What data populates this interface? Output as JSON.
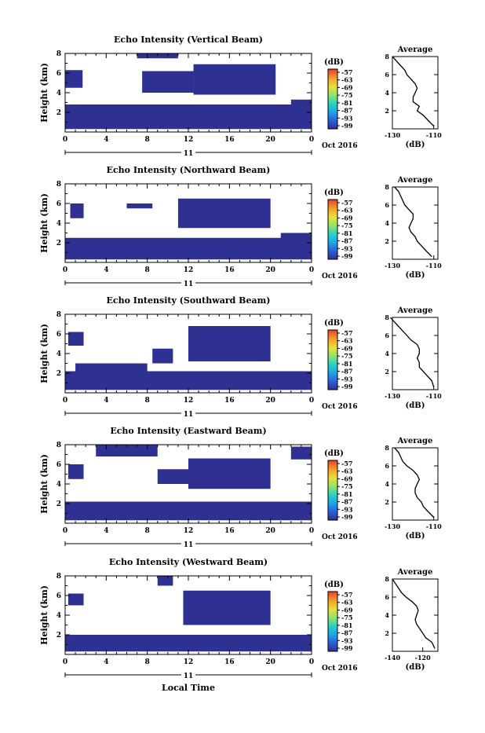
{
  "figure": {
    "xlabel_bottom": "Local Time"
  },
  "colorbar": {
    "unit_label": "(dB)",
    "ticks": [
      "-57",
      "-63",
      "-69",
      "-75",
      "-81",
      "-87",
      "-93",
      "-99"
    ]
  },
  "chart_data": [
    {
      "type": "heatmap",
      "title": "Echo Intensity (Vertical Beam)",
      "ylabel": "Height (km)",
      "ylim": [
        0,
        8
      ],
      "yticks": [
        "2",
        "4",
        "6",
        "8"
      ],
      "xlim": [
        0,
        24
      ],
      "xticks": [
        "0",
        "4",
        "8",
        "12",
        "16",
        "20",
        "0"
      ],
      "date_marker": "11",
      "date_label": "Oct 2016",
      "color_range": [
        -99,
        -57
      ],
      "blocks": [
        {
          "t0": 0,
          "t1": 24,
          "h0": 0.3,
          "h1": 2.8,
          "value": -99
        },
        {
          "t0": 0,
          "t1": 1.7,
          "h0": 4.5,
          "h1": 6.3,
          "value": -99
        },
        {
          "t0": 12.5,
          "t1": 20.5,
          "h0": 3.8,
          "h1": 6.9,
          "value": -99
        },
        {
          "t0": 7.5,
          "t1": 12.5,
          "h0": 4.0,
          "h1": 6.2,
          "value": -99
        },
        {
          "t0": 7.0,
          "t1": 11.0,
          "h0": 7.5,
          "h1": 8.0,
          "value": -99
        },
        {
          "t0": 22.0,
          "t1": 24,
          "h0": 1.5,
          "h1": 3.3,
          "value": -99
        }
      ],
      "avg_profile": {
        "xlabel": "(dB)",
        "title": "Average",
        "xlim": [
          -130,
          -108
        ],
        "xticks": [
          "-130",
          "-110"
        ],
        "ylim": [
          0,
          8
        ],
        "yticks": [
          "2",
          "4",
          "6",
          "8"
        ],
        "height": [
          0.3,
          1.0,
          1.5,
          2.0,
          2.5,
          3.0,
          3.5,
          4.0,
          4.5,
          5.0,
          5.5,
          6.0,
          6.5,
          7.0,
          7.5,
          8.0
        ],
        "value": [
          -110,
          -113,
          -115,
          -118,
          -117,
          -120,
          -120,
          -119,
          -118,
          -119,
          -121,
          -123,
          -124,
          -126,
          -128,
          -130
        ]
      }
    },
    {
      "type": "heatmap",
      "title": "Echo Intensity (Northward Beam)",
      "ylabel": "Height (km)",
      "ylim": [
        0,
        8
      ],
      "yticks": [
        "2",
        "4",
        "6",
        "8"
      ],
      "xlim": [
        0,
        24
      ],
      "xticks": [
        "0",
        "4",
        "8",
        "12",
        "16",
        "20",
        "0"
      ],
      "date_marker": "11",
      "date_label": "Oct 2016",
      "color_range": [
        -99,
        -57
      ],
      "blocks": [
        {
          "t0": 0,
          "t1": 24,
          "h0": 0.3,
          "h1": 2.5,
          "value": -99
        },
        {
          "t0": 0.5,
          "t1": 1.8,
          "h0": 4.5,
          "h1": 6.0,
          "value": -99
        },
        {
          "t0": 11.0,
          "t1": 20.0,
          "h0": 3.5,
          "h1": 6.5,
          "value": -99
        },
        {
          "t0": 6.0,
          "t1": 8.5,
          "h0": 5.5,
          "h1": 6.0,
          "value": -99
        },
        {
          "t0": 21.0,
          "t1": 24,
          "h0": 1.5,
          "h1": 3.0,
          "value": -99
        }
      ],
      "avg_profile": {
        "xlabel": "(dB)",
        "title": "Average",
        "xlim": [
          -130,
          -108
        ],
        "xticks": [
          "-130",
          "-110"
        ],
        "ylim": [
          0,
          8
        ],
        "yticks": [
          "2",
          "4",
          "6",
          "8"
        ],
        "height": [
          0.3,
          1.0,
          1.5,
          2.0,
          2.5,
          3.0,
          3.5,
          4.0,
          4.5,
          5.0,
          5.5,
          6.0,
          6.5,
          7.0,
          7.5,
          8.0
        ],
        "value": [
          -111,
          -114,
          -116,
          -118,
          -119,
          -121,
          -122,
          -121,
          -120,
          -120,
          -122,
          -124,
          -125,
          -126,
          -127,
          -129
        ]
      }
    },
    {
      "type": "heatmap",
      "title": "Echo Intensity (Southward Beam)",
      "ylabel": "Height (km)",
      "ylim": [
        0,
        8
      ],
      "yticks": [
        "2",
        "4",
        "6",
        "8"
      ],
      "xlim": [
        0,
        24
      ],
      "xticks": [
        "0",
        "4",
        "8",
        "12",
        "16",
        "20",
        "0"
      ],
      "date_marker": "11",
      "date_label": "Oct 2016",
      "color_range": [
        -99,
        -57
      ],
      "blocks": [
        {
          "t0": 0,
          "t1": 24,
          "h0": 0.3,
          "h1": 2.2,
          "value": -99
        },
        {
          "t0": 0.3,
          "t1": 1.8,
          "h0": 4.8,
          "h1": 6.2,
          "value": -99
        },
        {
          "t0": 12.0,
          "t1": 20.0,
          "h0": 3.2,
          "h1": 6.8,
          "value": -99
        },
        {
          "t0": 8.5,
          "t1": 10.5,
          "h0": 3.0,
          "h1": 4.5,
          "value": -99
        },
        {
          "t0": 1.0,
          "t1": 8.0,
          "h0": 2.0,
          "h1": 3.0,
          "value": -99
        }
      ],
      "avg_profile": {
        "xlabel": "(dB)",
        "title": "Average",
        "xlim": [
          -130,
          -108
        ],
        "xticks": [
          "-130",
          "-110"
        ],
        "ylim": [
          0,
          8
        ],
        "yticks": [
          "2",
          "4",
          "6",
          "8"
        ],
        "height": [
          0.3,
          1.0,
          1.5,
          2.0,
          2.5,
          3.0,
          3.5,
          4.0,
          4.5,
          5.0,
          5.5,
          6.0,
          6.5,
          7.0,
          7.5,
          8.0
        ],
        "value": [
          -110,
          -111,
          -113,
          -115,
          -117,
          -117,
          -118,
          -117,
          -117,
          -118,
          -121,
          -123,
          -125,
          -127,
          -129,
          -131
        ]
      }
    },
    {
      "type": "heatmap",
      "title": "Echo Intensity (Eastward Beam)",
      "ylabel": "Height (km)",
      "ylim": [
        0,
        8
      ],
      "yticks": [
        "2",
        "4",
        "6",
        "8"
      ],
      "xlim": [
        0,
        24
      ],
      "xticks": [
        "0",
        "4",
        "8",
        "12",
        "16",
        "20",
        "0"
      ],
      "date_marker": "11",
      "date_label": "Oct 2016",
      "color_range": [
        -99,
        -57
      ],
      "blocks": [
        {
          "t0": 0,
          "t1": 24,
          "h0": 0.3,
          "h1": 2.2,
          "value": -99
        },
        {
          "t0": 0.3,
          "t1": 1.8,
          "h0": 4.5,
          "h1": 6.0,
          "value": -99
        },
        {
          "t0": 12.0,
          "t1": 20.0,
          "h0": 3.5,
          "h1": 6.6,
          "value": -99
        },
        {
          "t0": 9.0,
          "t1": 12.5,
          "h0": 4.0,
          "h1": 5.5,
          "value": -99
        },
        {
          "t0": 22.0,
          "t1": 24,
          "h0": 6.5,
          "h1": 7.8,
          "value": -99
        },
        {
          "t0": 3.0,
          "t1": 9.0,
          "h0": 6.8,
          "h1": 8.0,
          "value": -99
        }
      ],
      "avg_profile": {
        "xlabel": "(dB)",
        "title": "Average",
        "xlim": [
          -130,
          -108
        ],
        "xticks": [
          "-130",
          "-110"
        ],
        "ylim": [
          0,
          8
        ],
        "yticks": [
          "2",
          "4",
          "6",
          "8"
        ],
        "height": [
          0.3,
          1.0,
          1.5,
          2.0,
          2.5,
          3.0,
          3.5,
          4.0,
          4.5,
          5.0,
          5.5,
          6.0,
          6.5,
          7.0,
          7.5,
          8.0
        ],
        "value": [
          -110,
          -113,
          -115,
          -116,
          -118,
          -119,
          -119,
          -118,
          -117,
          -118,
          -120,
          -123,
          -125,
          -126,
          -127,
          -129
        ]
      }
    },
    {
      "type": "heatmap",
      "title": "Echo Intensity (Westward Beam)",
      "ylabel": "Height (km)",
      "ylim": [
        0,
        8
      ],
      "yticks": [
        "2",
        "4",
        "6",
        "8"
      ],
      "xlim": [
        0,
        24
      ],
      "xticks": [
        "0",
        "4",
        "8",
        "12",
        "16",
        "20",
        "0"
      ],
      "date_marker": "11",
      "date_label": "Oct 2016",
      "color_range": [
        -99,
        -57
      ],
      "blocks": [
        {
          "t0": 0,
          "t1": 24,
          "h0": 0.3,
          "h1": 2.0,
          "value": -99
        },
        {
          "t0": 0.3,
          "t1": 1.8,
          "h0": 5.0,
          "h1": 6.2,
          "value": -99
        },
        {
          "t0": 11.5,
          "t1": 20.0,
          "h0": 3.0,
          "h1": 6.5,
          "value": -99
        },
        {
          "t0": 9.0,
          "t1": 10.5,
          "h0": 7.0,
          "h1": 8.0,
          "value": -99
        }
      ],
      "avg_profile": {
        "xlabel": "(dB)",
        "title": "Average",
        "xlim": [
          -140,
          -110
        ],
        "xticks": [
          "-140",
          "-120"
        ],
        "ylim": [
          0,
          8
        ],
        "yticks": [
          "2",
          "4",
          "6",
          "8"
        ],
        "height": [
          0.3,
          1.0,
          1.5,
          2.0,
          2.5,
          3.0,
          3.5,
          4.0,
          4.5,
          5.0,
          5.5,
          6.0,
          6.5,
          7.0,
          7.5,
          8.0
        ],
        "value": [
          -112,
          -114,
          -118,
          -120,
          -122,
          -124,
          -125,
          -124,
          -123,
          -124,
          -127,
          -131,
          -134,
          -136,
          -138,
          -140
        ]
      }
    }
  ]
}
